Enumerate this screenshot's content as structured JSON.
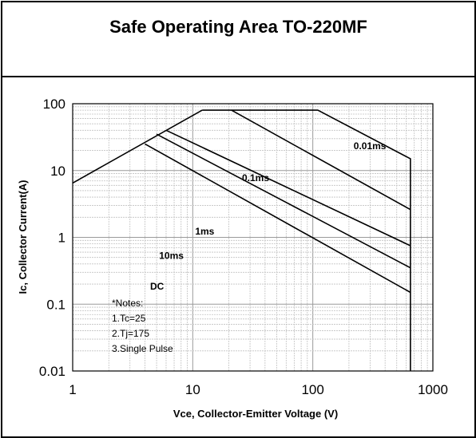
{
  "chart_data": {
    "type": "line",
    "title": "Safe Operating Area TO-220MF",
    "xlabel": "Vce, Collector-Emitter Voltage (V)",
    "ylabel": "Ic, Collector Current(A)",
    "xscale": "log",
    "yscale": "log",
    "xlim": [
      1,
      1000
    ],
    "ylim": [
      0.01,
      100
    ],
    "x_tick_labels": [
      "1",
      "10",
      "100",
      "1000"
    ],
    "y_tick_labels": [
      "0.01",
      "0.1",
      "1",
      "10",
      "100"
    ],
    "grid": true,
    "series": [
      {
        "name": "0.01ms",
        "points": [
          [
            12,
            80
          ],
          [
            110,
            80
          ],
          [
            650,
            15
          ],
          [
            650,
            0.01
          ]
        ]
      },
      {
        "name": "0.1ms",
        "points": [
          [
            21,
            80
          ],
          [
            650,
            2.6
          ]
        ]
      },
      {
        "name": "1ms",
        "points": [
          [
            6,
            40
          ],
          [
            650,
            0.75
          ]
        ]
      },
      {
        "name": "10ms",
        "points": [
          [
            5,
            35
          ],
          [
            650,
            0.35
          ]
        ]
      },
      {
        "name": "DC",
        "points": [
          [
            1,
            6.5
          ],
          [
            12,
            80
          ],
          [
            4,
            25
          ],
          [
            650,
            0.15
          ]
        ]
      }
    ],
    "notes": [
      "*Notes:",
      "1.Tc=25",
      "2.Tj=175",
      "3.Single Pulse"
    ]
  }
}
